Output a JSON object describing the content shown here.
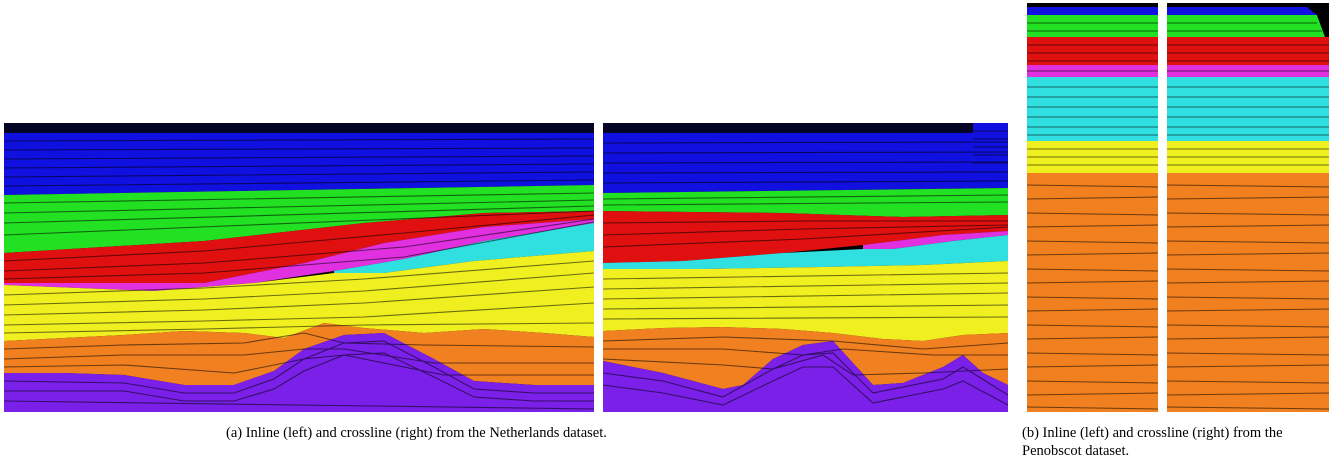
{
  "figure": {
    "subfigure_a": {
      "caption": "(a) Inline (left) and crossline (right) from the Netherlands dataset.",
      "images": [
        "seismic-inline",
        "seismic-crossline"
      ]
    },
    "subfigure_b": {
      "caption": "(b) Inline (left) and crossline (right) from the Penobscot dataset.",
      "images": [
        "seismic-inline",
        "seismic-crossline"
      ]
    }
  },
  "colors": {
    "background": "#000000",
    "class_blue": "#1010e0",
    "class_green": "#22e022",
    "class_red": "#e01010",
    "class_magenta": "#e030e0",
    "class_cyan": "#30e0e0",
    "class_yellow": "#f0f020",
    "class_orange": "#f08020",
    "class_purple": "#7a20e8"
  }
}
